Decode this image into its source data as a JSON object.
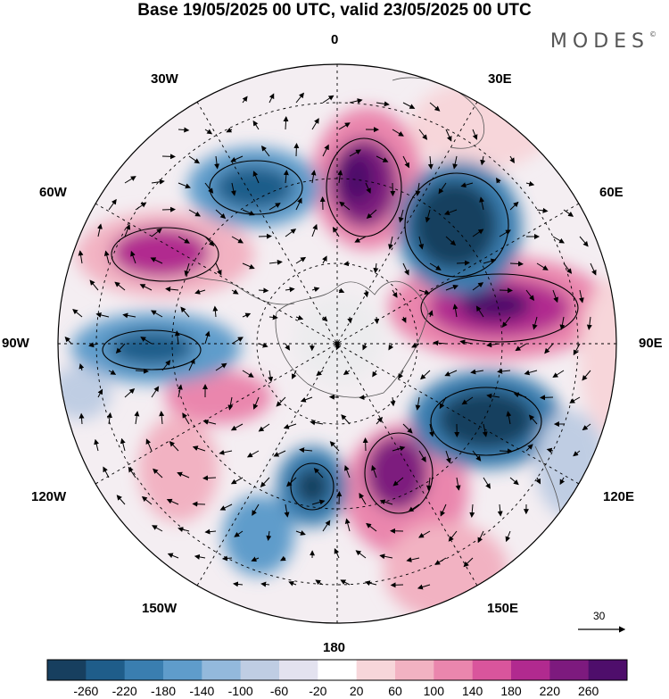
{
  "header": {
    "title": "Base 19/05/2025 00 UTC, valid 23/05/2025 00 UTC",
    "brand": "MODES"
  },
  "map": {
    "projection": "south-polar-stereographic",
    "longitude_labels": {
      "top": "0",
      "bottom": "180",
      "left": "90W",
      "right": "90E",
      "ul30": "30W",
      "ur30": "30E",
      "ul60": "60W",
      "ur60": "60E",
      "ll120": "120W",
      "lr120": "120E",
      "ll150": "150W",
      "lr150": "150E"
    },
    "reference_vector": {
      "label": "30"
    }
  },
  "colorbar": {
    "ticks": [
      "-260",
      "-220",
      "-180",
      "-140",
      "-100",
      "-60",
      "-20",
      "20",
      "60",
      "100",
      "140",
      "180",
      "220",
      "260"
    ],
    "colors": [
      "#173f5f",
      "#1f5d8a",
      "#3a7eb0",
      "#5f9ccb",
      "#93b9dc",
      "#bfcde3",
      "#e3e2ef",
      "#ffffff",
      "#f7d6da",
      "#f2b2c2",
      "#ea86ad",
      "#d9559c",
      "#b12a8f",
      "#7d1a7e",
      "#4e0e6b"
    ]
  }
}
